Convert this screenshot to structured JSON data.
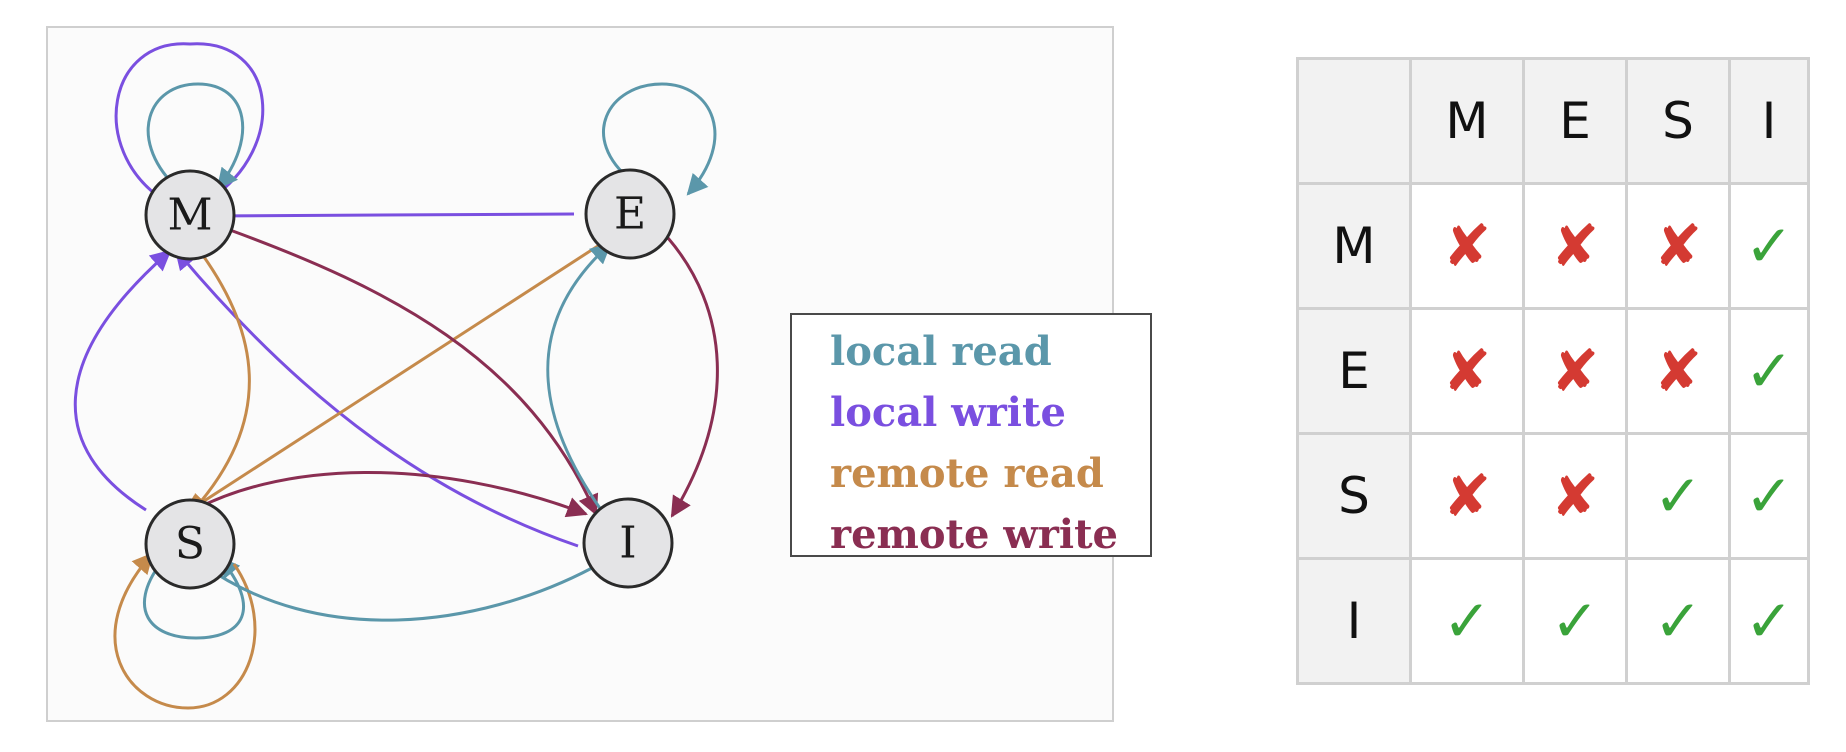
{
  "diagram": {
    "states": [
      {
        "id": "M",
        "label": "M"
      },
      {
        "id": "E",
        "label": "E"
      },
      {
        "id": "S",
        "label": "S"
      },
      {
        "id": "I",
        "label": "I"
      }
    ],
    "legend": [
      {
        "key": "local_read",
        "label": "local read",
        "color": "#5b97aa"
      },
      {
        "key": "local_write",
        "label": "local write",
        "color": "#7a4fe0"
      },
      {
        "key": "remote_read",
        "label": "remote read",
        "color": "#c58a4b"
      },
      {
        "key": "remote_write",
        "label": "remote write",
        "color": "#8a2e52"
      }
    ],
    "transitions": [
      {
        "from": "M",
        "to": "M",
        "event": "local_write"
      },
      {
        "from": "M",
        "to": "M",
        "event": "local_read"
      },
      {
        "from": "E",
        "to": "E",
        "event": "local_read"
      },
      {
        "from": "S",
        "to": "S",
        "event": "local_read"
      },
      {
        "from": "S",
        "to": "S",
        "event": "remote_read"
      },
      {
        "from": "E",
        "to": "M",
        "event": "local_write"
      },
      {
        "from": "S",
        "to": "M",
        "event": "local_write"
      },
      {
        "from": "I",
        "to": "M",
        "event": "local_write"
      },
      {
        "from": "M",
        "to": "S",
        "event": "remote_read"
      },
      {
        "from": "E",
        "to": "S",
        "event": "remote_read"
      },
      {
        "from": "M",
        "to": "I",
        "event": "remote_write"
      },
      {
        "from": "E",
        "to": "I",
        "event": "remote_write"
      },
      {
        "from": "S",
        "to": "I",
        "event": "remote_write"
      },
      {
        "from": "I",
        "to": "E",
        "event": "local_read"
      },
      {
        "from": "I",
        "to": "S",
        "event": "local_read"
      }
    ]
  },
  "compatibility_table": {
    "corner": "",
    "columns": [
      "M",
      "E",
      "S",
      "I"
    ],
    "rows": [
      {
        "label": "M",
        "values": [
          "x",
          "x",
          "x",
          "check"
        ]
      },
      {
        "label": "E",
        "values": [
          "x",
          "x",
          "x",
          "check"
        ]
      },
      {
        "label": "S",
        "values": [
          "x",
          "x",
          "check",
          "check"
        ]
      },
      {
        "label": "I",
        "values": [
          "check",
          "check",
          "check",
          "check"
        ]
      }
    ],
    "symbols": {
      "x": "✘",
      "check": "✓"
    },
    "colors": {
      "x": "#d43a32",
      "check": "#3aa33a"
    }
  }
}
